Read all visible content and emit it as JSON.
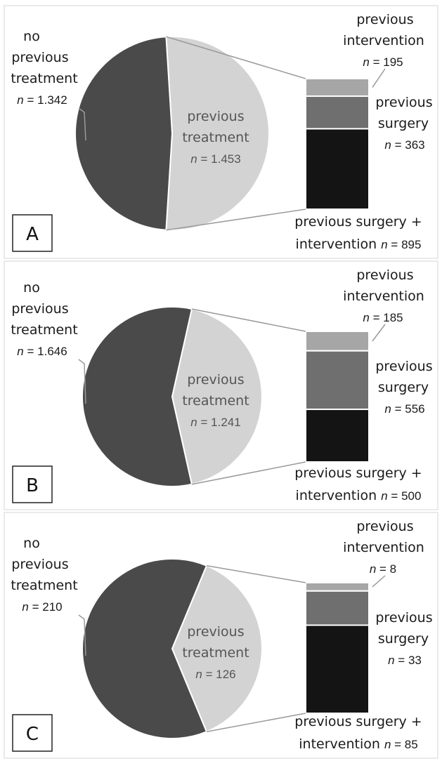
{
  "colors": {
    "no_treatment": "#4a4a4a",
    "previous_treatment": "#d3d3d3",
    "previous_intervention": "#a6a6a6",
    "previous_surgery": "#6f6f6f",
    "surgery_and_intervention": "#141414",
    "connector": "#9a9a9a",
    "panel_border": "#e3e3e3"
  },
  "chart_data": [
    {
      "type": "pie",
      "panel": "A",
      "pie": {
        "slices": [
          {
            "label": "no previous treatment",
            "n_text": "n = 1.342",
            "value": 1342
          },
          {
            "label": "previous treatment",
            "n_text": "n = 1.453",
            "value": 1453
          }
        ]
      },
      "breakdown": {
        "type": "stacked-bar",
        "segments": [
          {
            "label": "previous intervention",
            "n_text": "n = 195",
            "value": 195
          },
          {
            "label": "previous surgery",
            "n_text": "n = 363",
            "value": 363
          },
          {
            "label": "previous surgery + intervention",
            "n_text": "n = 895",
            "value": 895
          }
        ]
      }
    },
    {
      "type": "pie",
      "panel": "B",
      "pie": {
        "slices": [
          {
            "label": "no previous treatment",
            "n_text": "n = 1.646",
            "value": 1646
          },
          {
            "label": "previous treatment",
            "n_text": "n = 1.241",
            "value": 1241
          }
        ]
      },
      "breakdown": {
        "type": "stacked-bar",
        "segments": [
          {
            "label": "previous intervention",
            "n_text": "n = 185",
            "value": 185
          },
          {
            "label": "previous surgery",
            "n_text": "n = 556",
            "value": 556
          },
          {
            "label": "previous surgery + intervention",
            "n_text": "n = 500",
            "value": 500
          }
        ]
      }
    },
    {
      "type": "pie",
      "panel": "C",
      "pie": {
        "slices": [
          {
            "label": "no previous treatment",
            "n_text": "n = 210",
            "value": 210
          },
          {
            "label": "previous treatment",
            "n_text": "n = 126",
            "value": 126
          }
        ]
      },
      "breakdown": {
        "type": "stacked-bar",
        "segments": [
          {
            "label": "previous intervention",
            "n_text": "n = 8",
            "value": 8
          },
          {
            "label": "previous surgery",
            "n_text": "n = 33",
            "value": 33
          },
          {
            "label": "previous surgery + intervention",
            "n_text": "n = 85",
            "value": 85
          }
        ]
      }
    }
  ]
}
